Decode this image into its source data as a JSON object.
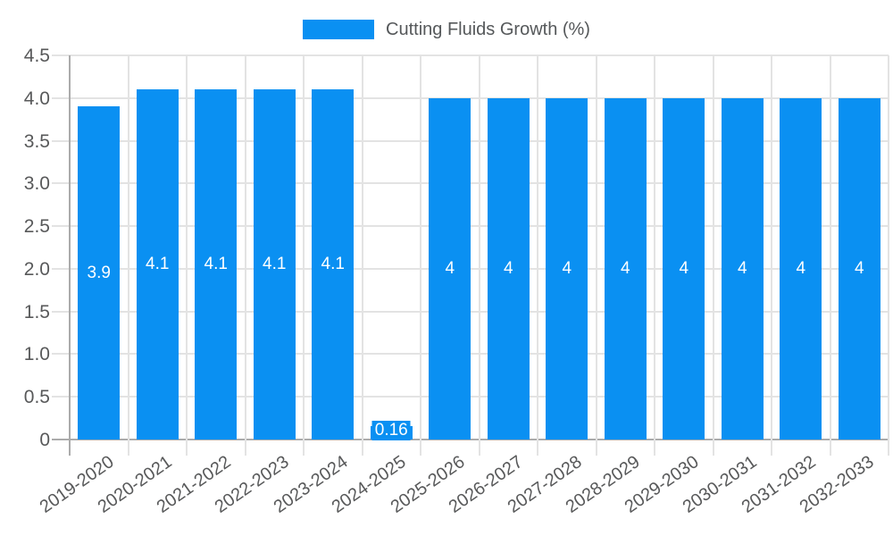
{
  "legend": {
    "label": "Cutting Fluids Growth (%)"
  },
  "chart_data": {
    "type": "bar",
    "title": "",
    "legend_entries": [
      "Cutting Fluids Growth (%)"
    ],
    "legend_position": "top-center",
    "categories": [
      "2019-2020",
      "2020-2021",
      "2021-2022",
      "2022-2023",
      "2023-2024",
      "2024-2025",
      "2025-2026",
      "2026-2027",
      "2027-2028",
      "2028-2029",
      "2029-2030",
      "2030-2031",
      "2031-2032",
      "2032-2033"
    ],
    "values": [
      3.9,
      4.1,
      4.1,
      4.1,
      4.1,
      0.16,
      4,
      4,
      4,
      4,
      4,
      4,
      4,
      4
    ],
    "bar_labels": [
      "3.9",
      "4.1",
      "4.1",
      "4.1",
      "4.1",
      "0.16",
      "4",
      "4",
      "4",
      "4",
      "4",
      "4",
      "4",
      "4"
    ],
    "xlabel": "",
    "ylabel": "",
    "ylim": [
      0,
      4.5
    ],
    "ytick_labels": [
      "4.5",
      "4.0",
      "3.5",
      "3.0",
      "2.5",
      "2.0",
      "1.5",
      "1.0",
      "0.5",
      "0"
    ],
    "ytick_values": [
      4.5,
      4.0,
      3.5,
      3.0,
      2.5,
      2.0,
      1.5,
      1.0,
      0.5,
      0
    ],
    "grid": true,
    "colors": {
      "bar": "#0a90f2",
      "grid": "#e3e3e3",
      "axis": "#ababab",
      "tick_text": "#58595a",
      "legend_text": "#55585a",
      "bar_label_text": "#ffffff",
      "background": "#ffffff"
    }
  }
}
